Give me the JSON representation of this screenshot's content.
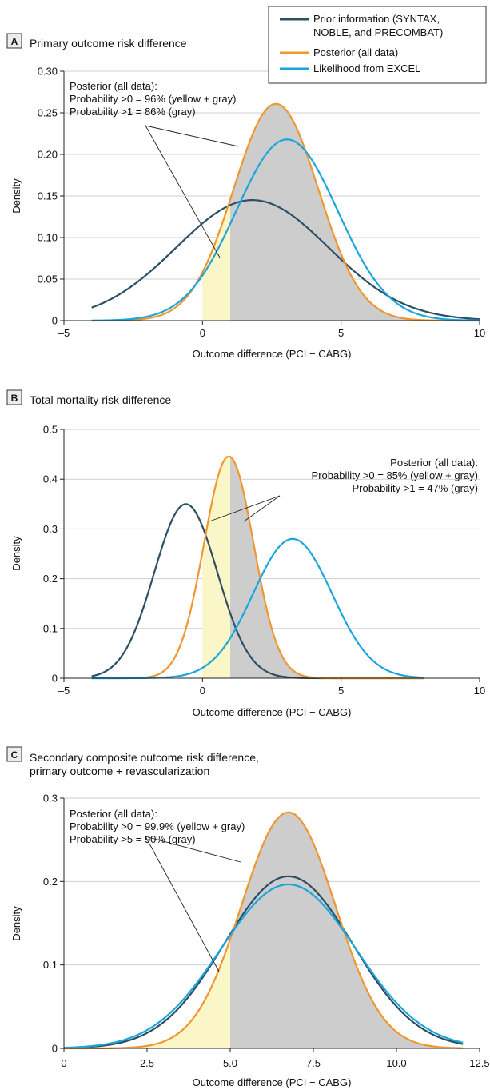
{
  "legend": {
    "items": [
      {
        "lines": [
          "Prior information (SYNTAX,",
          "NOBLE, and PRECOMBAT)"
        ],
        "color": "#2c4f63"
      },
      {
        "lines": [
          "Posterior (all data)"
        ],
        "color": "#f0962e"
      },
      {
        "lines": [
          "Likelihood from EXCEL"
        ],
        "color": "#1aa6dd"
      }
    ]
  },
  "colors": {
    "prior": "#2c4f63",
    "posterior": "#f0962e",
    "likelihood": "#1aa6dd",
    "yellow_fill": "#fbf6c8",
    "gray_fill": "#cdcdce",
    "grid": "#cfcfcf"
  },
  "chart_data": [
    {
      "type": "line",
      "panel_letter": "A",
      "title_lines": [
        "Primary outcome risk difference"
      ],
      "xlabel": "Outcome difference (PCI − CABG)",
      "ylabel": "Density",
      "xlim": [
        -5,
        10
      ],
      "ylim": [
        0,
        0.3
      ],
      "xticks": [
        -5,
        0,
        5,
        10
      ],
      "xtick_labels": [
        "–5",
        "0",
        "5",
        "10"
      ],
      "yticks": [
        0,
        0.05,
        0.1,
        0.15,
        0.2,
        0.25,
        0.3
      ],
      "ytick_labels": [
        "0",
        "0.05",
        "0.10",
        "0.15",
        "0.20",
        "0.25",
        "0.30"
      ],
      "shading": {
        "yellow_from": 0,
        "gray_from": 1,
        "to": 10
      },
      "annotation": [
        "Posterior (all data):",
        "Probability >0 = 96% (yellow + gray)",
        "Probability >1 = 86% (gray)"
      ],
      "series": [
        {
          "role": "prior",
          "mean": 1.8,
          "sd": 2.75,
          "x_range": [
            -4,
            10
          ]
        },
        {
          "role": "posterior",
          "mean": 2.65,
          "sd": 1.53,
          "x_range": [
            -4,
            10
          ]
        },
        {
          "role": "likelihood",
          "mean": 3.05,
          "sd": 1.83,
          "x_range": [
            -4,
            10
          ]
        }
      ]
    },
    {
      "type": "line",
      "panel_letter": "B",
      "title_lines": [
        "Total mortality risk difference"
      ],
      "xlabel": "Outcome difference (PCI − CABG)",
      "ylabel": "Density",
      "xlim": [
        -5,
        10
      ],
      "ylim": [
        0,
        0.5
      ],
      "xticks": [
        -5,
        0,
        5,
        10
      ],
      "xtick_labels": [
        "–5",
        "0",
        "5",
        "10"
      ],
      "yticks": [
        0,
        0.1,
        0.2,
        0.3,
        0.4,
        0.5
      ],
      "ytick_labels": [
        "0",
        "0.1",
        "0.2",
        "0.3",
        "0.4",
        "0.5"
      ],
      "shading": {
        "yellow_from": 0,
        "gray_from": 1,
        "to": 10
      },
      "annotation": [
        "Posterior (all data):",
        "Probability >0 = 85% (yellow + gray)",
        "Probability >1 = 47% (gray)"
      ],
      "series": [
        {
          "role": "prior",
          "mean": -0.6,
          "sd": 1.14,
          "x_range": [
            -4,
            8
          ]
        },
        {
          "role": "posterior",
          "mean": 0.95,
          "sd": 0.895,
          "x_range": [
            -4,
            8
          ]
        },
        {
          "role": "likelihood",
          "mean": 3.25,
          "sd": 1.425,
          "x_range": [
            -4,
            8
          ]
        }
      ]
    },
    {
      "type": "line",
      "panel_letter": "C",
      "title_lines": [
        "Secondary composite outcome risk difference,",
        "primary outcome + revascularization"
      ],
      "xlabel": "Outcome difference (PCI − CABG)",
      "ylabel": "Density",
      "xlim": [
        0,
        12.5
      ],
      "ylim": [
        0,
        0.3
      ],
      "xticks": [
        0,
        2.5,
        5.0,
        7.5,
        10.0,
        12.5
      ],
      "xtick_labels": [
        "0",
        "2.5",
        "5.0",
        "7.5",
        "10.0",
        "12.5"
      ],
      "yticks": [
        0,
        0.1,
        0.2,
        0.3
      ],
      "ytick_labels": [
        "0",
        "0.1",
        "0.2",
        "0.3"
      ],
      "shading": {
        "yellow_from": 0,
        "gray_from": 5,
        "to": 12.5
      },
      "annotation": [
        "Posterior (all data):",
        "Probability >0 = 99.9% (yellow + gray)",
        "Probability >5 = 90% (gray)"
      ],
      "series": [
        {
          "role": "prior",
          "mean": 6.75,
          "sd": 1.935,
          "x_range": [
            0,
            12
          ]
        },
        {
          "role": "posterior",
          "mean": 6.75,
          "sd": 1.41,
          "x_range": [
            0,
            12
          ]
        },
        {
          "role": "likelihood",
          "mean": 6.75,
          "sd": 2.03,
          "x_range": [
            0,
            12
          ]
        }
      ]
    }
  ]
}
